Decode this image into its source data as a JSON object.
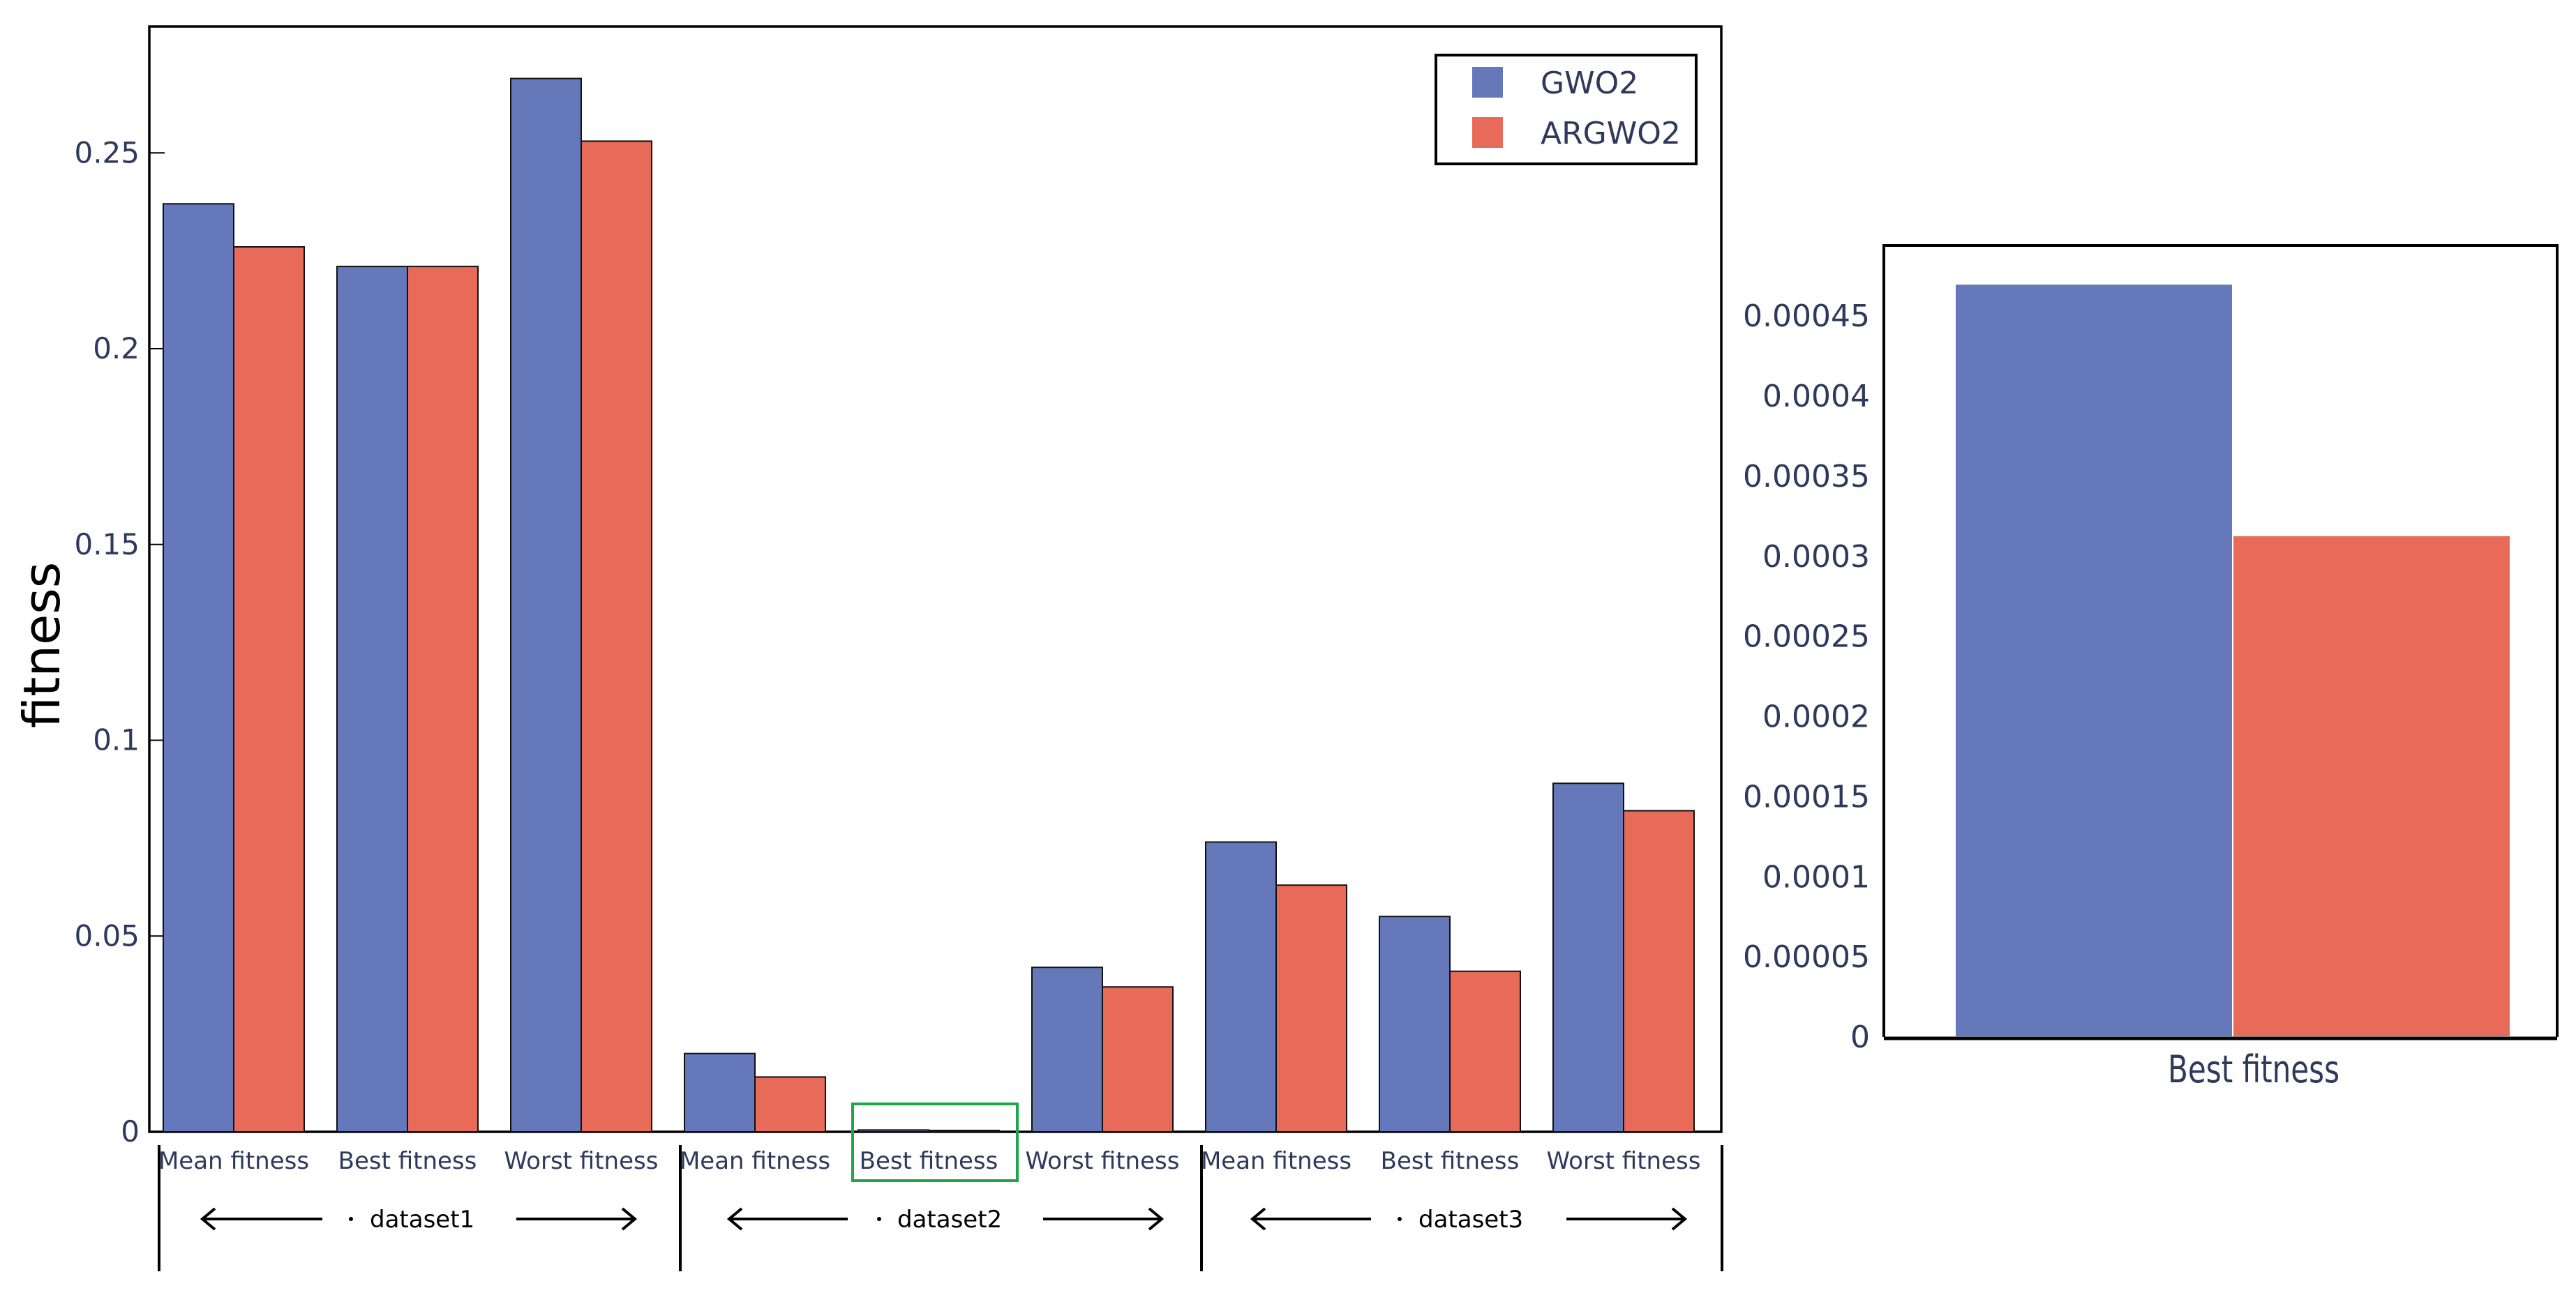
{
  "colors": {
    "series1": "#6478ba",
    "series2": "#e86a58",
    "highlight": "#1fa64a"
  },
  "chart_data": [
    {
      "type": "bar",
      "ylabel": "fitness",
      "ylim": [
        0,
        0.283
      ],
      "yticks": [
        0,
        0.05,
        0.1,
        0.15,
        0.2,
        0.25
      ],
      "ytick_labels": [
        "0",
        "0.05",
        "0.1",
        "0.15",
        "0.2",
        "0.25"
      ],
      "categories": [
        "Mean fitness",
        "Best fitness",
        "Worst fitness",
        "Mean fitness",
        "Best fitness",
        "Worst fitness",
        "Mean fitness",
        "Best fitness",
        "Worst fitness"
      ],
      "groups": [
        "dataset1",
        "dataset2",
        "dataset3"
      ],
      "highlight_index": 4,
      "legend": {
        "position": "top-right"
      },
      "series": [
        {
          "name": "GWO2",
          "values": [
            0.237,
            0.221,
            0.269,
            0.02,
            0.00047,
            0.042,
            0.074,
            0.055,
            0.089
          ]
        },
        {
          "name": "ARGWO2",
          "values": [
            0.226,
            0.221,
            0.253,
            0.014,
            0.00031,
            0.037,
            0.063,
            0.041,
            0.082
          ]
        }
      ]
    },
    {
      "type": "bar",
      "categories": [
        "Best fitness"
      ],
      "ylim": [
        0,
        0.0005
      ],
      "yticks": [
        0,
        5e-05,
        0.0001,
        0.00015,
        0.0002,
        0.00025,
        0.0003,
        0.00035,
        0.0004,
        0.00045
      ],
      "ytick_labels": [
        "0",
        "0.00005",
        "0.0001",
        "0.00015",
        "0.0002",
        "0.00025",
        "0.0003",
        "0.00035",
        "0.0004",
        "0.00045"
      ],
      "series": [
        {
          "name": "GWO2",
          "values": [
            0.00047
          ]
        },
        {
          "name": "ARGWO2",
          "values": [
            0.000313
          ]
        }
      ]
    }
  ]
}
